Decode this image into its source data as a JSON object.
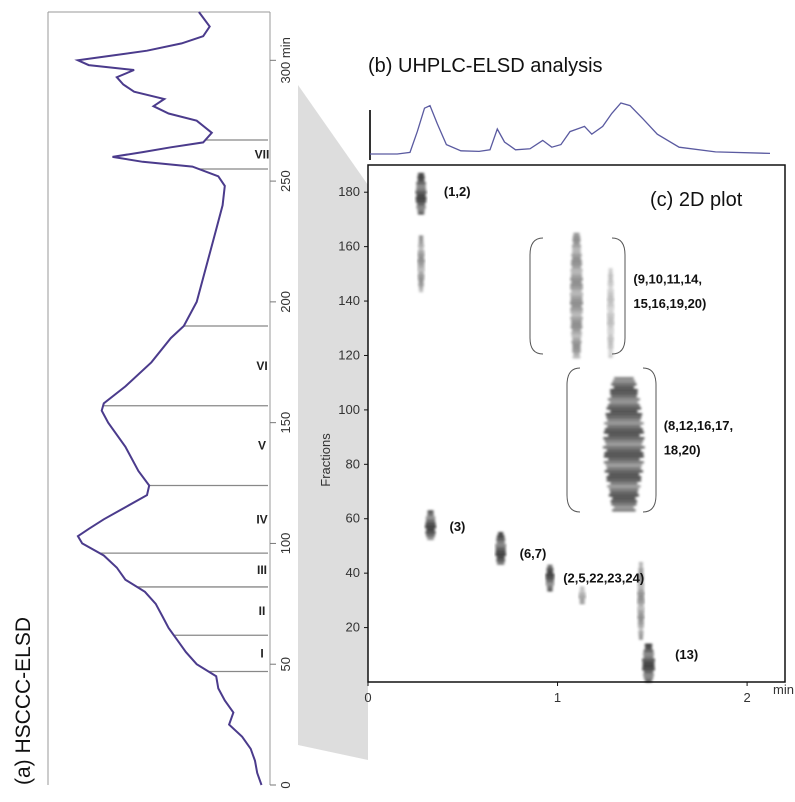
{
  "panel_a": {
    "label": "(a) HSCCC-ELSD",
    "axis_unit": "min"
  },
  "panel_b": {
    "label": "(b) UHPLC-ELSD analysis"
  },
  "panel_c": {
    "label": "(c) 2D plot",
    "ylabel": "Fractions",
    "x_unit": "min"
  },
  "chart_data": [
    {
      "type": "line",
      "name": "HSCCC-ELSD chromatogram",
      "axis": "time (min), vertical",
      "ylim": [
        0,
        320
      ],
      "ticks": [
        0,
        50,
        100,
        150,
        200,
        250,
        300
      ],
      "tick_labels": [
        "0",
        "50",
        "100",
        "150",
        "200",
        "250",
        "300 min"
      ],
      "fraction_regions": [
        {
          "label": "I",
          "from": 47,
          "to": 62
        },
        {
          "label": "II",
          "from": 62,
          "to": 82
        },
        {
          "label": "III",
          "from": 82,
          "to": 96
        },
        {
          "label": "IV",
          "from": 96,
          "to": 124
        },
        {
          "label": "V",
          "from": 124,
          "to": 157
        },
        {
          "label": "VI",
          "from": 157,
          "to": 190
        },
        {
          "label": "VII",
          "from": 255,
          "to": 267
        }
      ],
      "boundaries": [
        47,
        62,
        82,
        96,
        124,
        157,
        190,
        255,
        267
      ],
      "trace": [
        [
          0,
          0.03
        ],
        [
          5,
          0.05
        ],
        [
          10,
          0.06
        ],
        [
          15,
          0.08
        ],
        [
          20,
          0.12
        ],
        [
          25,
          0.18
        ],
        [
          30,
          0.16
        ],
        [
          35,
          0.2
        ],
        [
          40,
          0.23
        ],
        [
          45,
          0.24
        ],
        [
          50,
          0.33
        ],
        [
          55,
          0.38
        ],
        [
          60,
          0.42
        ],
        [
          65,
          0.46
        ],
        [
          70,
          0.49
        ],
        [
          75,
          0.52
        ],
        [
          80,
          0.57
        ],
        [
          85,
          0.66
        ],
        [
          90,
          0.7
        ],
        [
          95,
          0.76
        ],
        [
          100,
          0.86
        ],
        [
          103,
          0.88
        ],
        [
          106,
          0.83
        ],
        [
          110,
          0.76
        ],
        [
          115,
          0.66
        ],
        [
          120,
          0.56
        ],
        [
          124,
          0.55
        ],
        [
          130,
          0.6
        ],
        [
          140,
          0.66
        ],
        [
          150,
          0.74
        ],
        [
          155,
          0.77
        ],
        [
          158,
          0.76
        ],
        [
          165,
          0.66
        ],
        [
          175,
          0.54
        ],
        [
          185,
          0.45
        ],
        [
          190,
          0.39
        ],
        [
          200,
          0.33
        ],
        [
          210,
          0.3
        ],
        [
          220,
          0.27
        ],
        [
          230,
          0.24
        ],
        [
          240,
          0.21
        ],
        [
          248,
          0.2
        ],
        [
          252,
          0.23
        ],
        [
          256,
          0.35
        ],
        [
          258,
          0.58
        ],
        [
          260,
          0.72
        ],
        [
          262,
          0.58
        ],
        [
          264,
          0.45
        ],
        [
          266,
          0.3
        ],
        [
          270,
          0.26
        ],
        [
          275,
          0.33
        ],
        [
          278,
          0.46
        ],
        [
          281,
          0.53
        ],
        [
          284,
          0.48
        ],
        [
          287,
          0.62
        ],
        [
          290,
          0.67
        ],
        [
          293,
          0.7
        ],
        [
          296,
          0.62
        ],
        [
          298,
          0.83
        ],
        [
          300,
          0.88
        ],
        [
          302,
          0.72
        ],
        [
          304,
          0.56
        ],
        [
          307,
          0.4
        ],
        [
          310,
          0.3
        ],
        [
          314,
          0.27
        ],
        [
          320,
          0.32
        ]
      ]
    },
    {
      "type": "line",
      "name": "UHPLC-ELSD chromatogram",
      "xlim": [
        0,
        2.2
      ],
      "trace": [
        [
          0,
          0.02
        ],
        [
          0.15,
          0.02
        ],
        [
          0.22,
          0.05
        ],
        [
          0.26,
          0.45
        ],
        [
          0.3,
          0.9
        ],
        [
          0.33,
          0.95
        ],
        [
          0.37,
          0.6
        ],
        [
          0.42,
          0.2
        ],
        [
          0.5,
          0.08
        ],
        [
          0.6,
          0.07
        ],
        [
          0.66,
          0.1
        ],
        [
          0.7,
          0.5
        ],
        [
          0.74,
          0.25
        ],
        [
          0.8,
          0.1
        ],
        [
          0.88,
          0.12
        ],
        [
          0.95,
          0.28
        ],
        [
          1.0,
          0.15
        ],
        [
          1.05,
          0.2
        ],
        [
          1.1,
          0.45
        ],
        [
          1.18,
          0.55
        ],
        [
          1.22,
          0.4
        ],
        [
          1.28,
          0.55
        ],
        [
          1.33,
          0.8
        ],
        [
          1.38,
          1.0
        ],
        [
          1.43,
          0.95
        ],
        [
          1.5,
          0.7
        ],
        [
          1.58,
          0.4
        ],
        [
          1.7,
          0.15
        ],
        [
          1.9,
          0.06
        ],
        [
          2.2,
          0.03
        ]
      ]
    },
    {
      "type": "scatter",
      "name": "2D plot",
      "xlabel": "min",
      "ylabel": "Fractions",
      "xlim": [
        0,
        2.2
      ],
      "ylim": [
        0,
        190
      ],
      "xticks": [
        0,
        1,
        2
      ],
      "yticks": [
        20,
        40,
        60,
        80,
        100,
        120,
        140,
        160,
        180
      ],
      "spots": [
        {
          "x": 0.28,
          "y_from": 172,
          "y_to": 187,
          "width": 0.06,
          "intensity": 1.0
        },
        {
          "x": 0.28,
          "y_from": 144,
          "y_to": 164,
          "width": 0.04,
          "intensity": 0.6
        },
        {
          "x": 1.1,
          "y_from": 119,
          "y_to": 165,
          "width": 0.07,
          "intensity": 0.6
        },
        {
          "x": 1.28,
          "y_from": 119,
          "y_to": 152,
          "width": 0.04,
          "intensity": 0.35
        },
        {
          "x": 1.35,
          "y_from": 63,
          "y_to": 112,
          "width": 0.22,
          "intensity": 0.9
        },
        {
          "x": 0.33,
          "y_from": 52,
          "y_to": 63,
          "width": 0.06,
          "intensity": 1.0
        },
        {
          "x": 0.7,
          "y_from": 43,
          "y_to": 55,
          "width": 0.06,
          "intensity": 1.0
        },
        {
          "x": 0.96,
          "y_from": 34,
          "y_to": 43,
          "width": 0.05,
          "intensity": 1.0
        },
        {
          "x": 1.13,
          "y_from": 29,
          "y_to": 35,
          "width": 0.04,
          "intensity": 0.5
        },
        {
          "x": 1.44,
          "y_from": 16,
          "y_to": 44,
          "width": 0.04,
          "intensity": 0.6
        },
        {
          "x": 1.48,
          "y_from": 0,
          "y_to": 14,
          "width": 0.07,
          "intensity": 1.0
        }
      ],
      "annotations": [
        {
          "text": "(1,2)",
          "x": 0.4,
          "y": 180
        },
        {
          "text": "(9,10,11,14,",
          "x": 1.4,
          "y": 148
        },
        {
          "text": "15,16,19,20)",
          "x": 1.4,
          "y": 139
        },
        {
          "text": "(8,12,16,17,",
          "x": 1.56,
          "y": 94
        },
        {
          "text": "18,20)",
          "x": 1.56,
          "y": 85
        },
        {
          "text": "(3)",
          "x": 0.43,
          "y": 57
        },
        {
          "text": "(6,7)",
          "x": 0.8,
          "y": 47
        },
        {
          "text": "(2,5,22,23,24)",
          "x": 1.03,
          "y": 38
        },
        {
          "text": "(13)",
          "x": 1.62,
          "y": 10
        }
      ]
    }
  ]
}
